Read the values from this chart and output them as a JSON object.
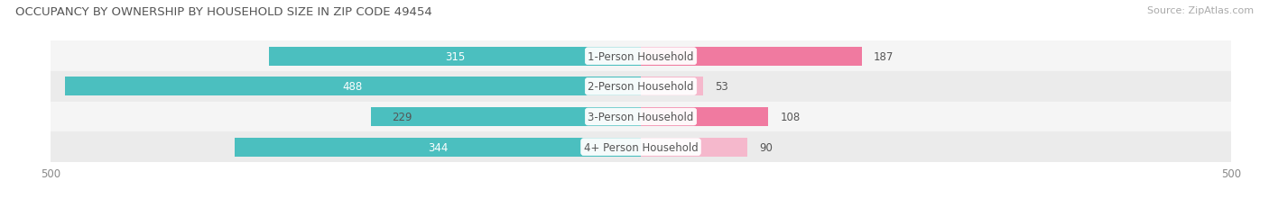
{
  "title": "OCCUPANCY BY OWNERSHIP BY HOUSEHOLD SIZE IN ZIP CODE 49454",
  "source": "Source: ZipAtlas.com",
  "categories": [
    "1-Person Household",
    "2-Person Household",
    "3-Person Household",
    "4+ Person Household"
  ],
  "owner_values": [
    315,
    488,
    229,
    344
  ],
  "renter_values": [
    187,
    53,
    108,
    90
  ],
  "owner_color": "#4BBFBF",
  "renter_color": "#F07AA0",
  "renter_color_light": "#F5A8C0",
  "row_bg_even": "#F5F5F5",
  "row_bg_odd": "#EBEBEB",
  "axis_max": 500,
  "title_fontsize": 9.5,
  "source_fontsize": 8,
  "tick_fontsize": 8.5,
  "legend_fontsize": 8.5,
  "bar_label_fontsize": 8.5,
  "cat_label_fontsize": 8.5,
  "bar_height": 0.62,
  "white_label_threshold": 300
}
